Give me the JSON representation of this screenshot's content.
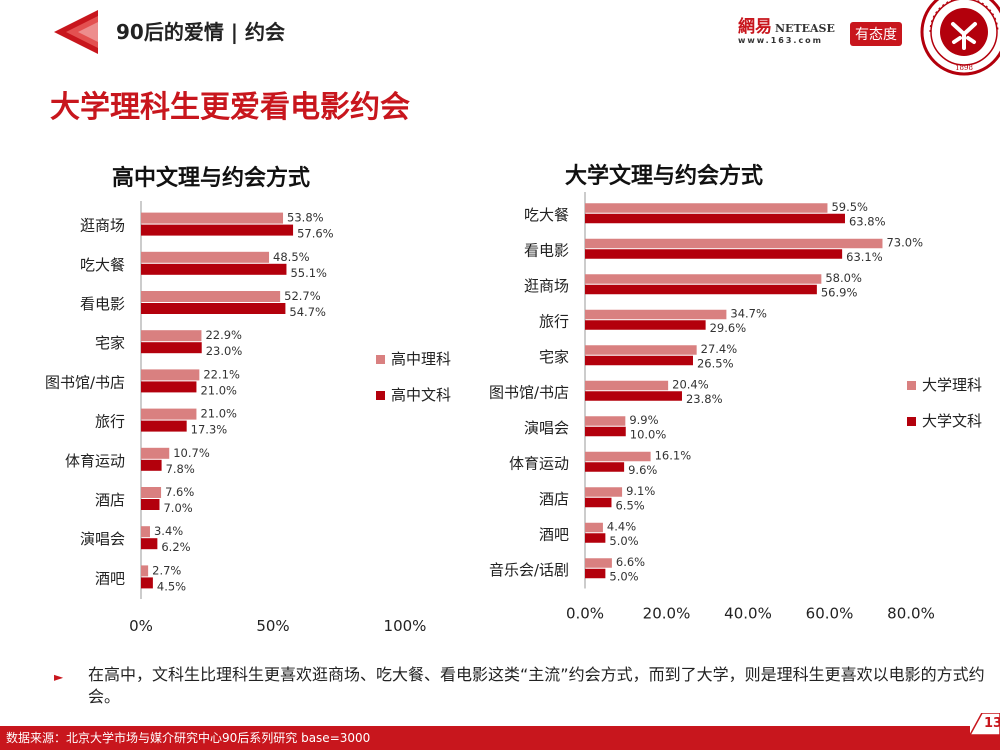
{
  "header": {
    "title": "90后的爱情 | 约会"
  },
  "logos": {
    "netease_cn": "網易",
    "netease_en": "NETEASE",
    "netease_url": "www.163.com",
    "youtaidu": "有态度",
    "seal_text": "PEKING UNIVERSITY",
    "seal_year": "1898"
  },
  "main_title": "大学理科生更爱看电影约会",
  "colors": {
    "series1": "#d98080",
    "series2": "#b3000c",
    "accent": "#c8161d"
  },
  "chart_data": [
    {
      "type": "bar",
      "orientation": "horizontal",
      "title": "高中文理与约会方式",
      "categories": [
        "逛商场",
        "吃大餐",
        "看电影",
        "宅家",
        "图书馆/书店",
        "旅行",
        "体育运动",
        "酒店",
        "演唱会",
        "酒吧"
      ],
      "series": [
        {
          "name": "高中理科",
          "values": [
            53.8,
            48.5,
            52.7,
            22.9,
            22.1,
            21.0,
            10.7,
            7.6,
            3.4,
            2.7
          ],
          "labels": [
            "53.8%",
            "48.5%",
            "52.7%",
            "22.9%",
            "22.1%",
            "21.0%",
            "10.7%",
            "7.6%",
            "3.4%",
            "2.7%"
          ]
        },
        {
          "name": "高中文科",
          "values": [
            57.6,
            55.1,
            54.7,
            23.0,
            21.0,
            17.3,
            7.8,
            7.0,
            6.2,
            4.5
          ],
          "labels": [
            "57.6%",
            "55.1%",
            "54.7%",
            "23.0%",
            "21.0%",
            "17.3%",
            "7.8%",
            "7.0%",
            "6.2%",
            "4.5%"
          ]
        }
      ],
      "xlim": [
        0,
        100
      ],
      "xticks": [
        0,
        50,
        100
      ],
      "xtick_labels": [
        "0%",
        "50%",
        "100%"
      ],
      "legend": "right",
      "grid": false
    },
    {
      "type": "bar",
      "orientation": "horizontal",
      "title": "大学文理与约会方式",
      "categories": [
        "吃大餐",
        "看电影",
        "逛商场",
        "旅行",
        "宅家",
        "图书馆/书店",
        "演唱会",
        "体育运动",
        "酒店",
        "酒吧",
        "音乐会/话剧"
      ],
      "series": [
        {
          "name": "大学理科",
          "values": [
            59.5,
            73.0,
            58.0,
            34.7,
            27.4,
            20.4,
            9.9,
            16.1,
            9.1,
            4.4,
            6.6
          ],
          "labels": [
            "59.5%",
            "73.0%",
            "58.0%",
            "34.7%",
            "27.4%",
            "20.4%",
            "9.9%",
            "16.1%",
            "9.1%",
            "4.4%",
            "6.6%"
          ]
        },
        {
          "name": "大学文科",
          "values": [
            63.8,
            63.1,
            56.9,
            29.6,
            26.5,
            23.8,
            10.0,
            9.6,
            6.5,
            5.0,
            5.0
          ],
          "labels": [
            "63.8%",
            "63.1%",
            "56.9%",
            "29.6%",
            "26.5%",
            "23.8%",
            "10.0%",
            "9.6%",
            "6.5%",
            "5.0%",
            "5.0%"
          ]
        }
      ],
      "xlim": [
        0,
        80
      ],
      "xticks": [
        0,
        20,
        40,
        60,
        80
      ],
      "xtick_labels": [
        "0.0%",
        "20.0%",
        "40.0%",
        "60.0%",
        "80.0%"
      ],
      "legend": "right",
      "grid": false
    }
  ],
  "note": "在高中，文科生比理科生更喜欢逛商场、吃大餐、看电影这类“主流”约会方式，而到了大学，则是理科生更喜欢以电影的方式约会。",
  "footer": {
    "source": "数据来源：北京大学市场与媒介研究中心90后系列研究 base=3000",
    "page": "13"
  }
}
